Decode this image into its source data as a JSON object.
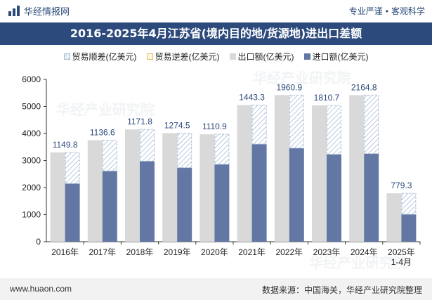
{
  "header": {
    "brand": "华经情报网",
    "tagline": "专业严谨",
    "tagline2": "客观科学"
  },
  "footer": {
    "website": "www.huaon.com",
    "source": "数据来源：中国海关，华经产业研究院整理"
  },
  "watermark": "华经产业研究院",
  "colors": {
    "export": "#d9d9d9",
    "import": "#6277a3",
    "surplus_hatch": "#a8bdd6",
    "title_bg": "#2c4a7b"
  },
  "chart_data": {
    "type": "bar",
    "title": "2016-2025年4月江苏省(境内目的地/货源地)进出口差额",
    "unit": "亿美元",
    "legend": [
      "贸易顺差(亿美元)",
      "贸易逆差(亿美元)",
      "出口额(亿美元)",
      "进口额(亿美元)"
    ],
    "legend_position": "top",
    "categories": [
      "2016年",
      "2017年",
      "2018年",
      "2019年",
      "2020年",
      "2021年",
      "2022年",
      "2023年",
      "2024年",
      "2025年\n1-4月"
    ],
    "series": [
      {
        "name": "出口额(亿美元)",
        "values": [
          3300,
          3750,
          4150,
          4010,
          3970,
          5050,
          5420,
          5040,
          5420,
          1790
        ]
      },
      {
        "name": "进口额(亿美元)",
        "values": [
          2150,
          2615,
          2978,
          2736,
          2859,
          3607,
          3459,
          3229,
          3255,
          1011
        ]
      },
      {
        "name": "贸易顺差(亿美元)",
        "values": [
          1149.8,
          1136.6,
          1171.8,
          1274.5,
          1110.9,
          1443.3,
          1960.9,
          1810.7,
          2164.8,
          779.3
        ]
      },
      {
        "name": "贸易逆差(亿美元)",
        "values": [
          0,
          0,
          0,
          0,
          0,
          0,
          0,
          0,
          0,
          0
        ]
      }
    ],
    "data_labels": [
      "1149.8",
      "1136.6",
      "1171.8",
      "1274.5",
      "1110.9",
      "1443.3",
      "1960.9",
      "1810.7",
      "2164.8",
      "779.3"
    ],
    "ylim": [
      0,
      6000
    ],
    "yticks": [
      0,
      1000,
      2000,
      3000,
      4000,
      5000,
      6000
    ],
    "grid": false
  }
}
